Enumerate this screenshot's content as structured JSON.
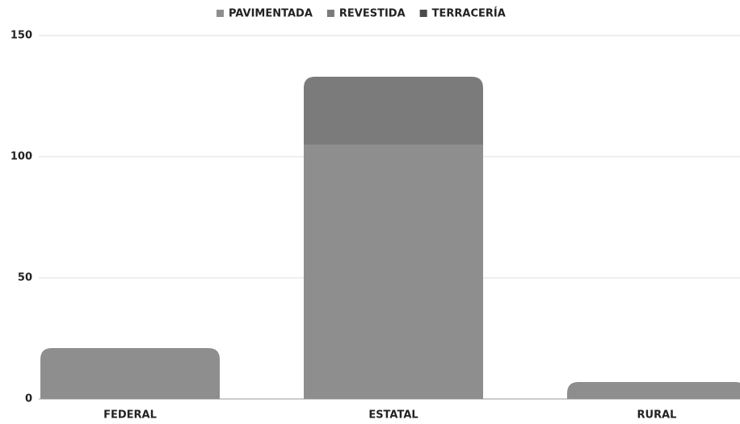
{
  "chart_data": {
    "type": "stacked_bar",
    "categories": [
      "FEDERAL",
      "ESTATAL",
      "RURAL"
    ],
    "series": [
      {
        "name": "PAVIMENTADA",
        "color": "#8e8e8e",
        "values": [
          21,
          105,
          7
        ]
      },
      {
        "name": "REVESTIDA",
        "color": "#7b7b7b",
        "values": [
          0,
          28,
          0
        ]
      },
      {
        "name": "TERRACERÍA",
        "color": "#4a4a4a",
        "values": [
          0,
          0,
          0
        ]
      }
    ],
    "ylim": [
      0,
      150
    ],
    "yticks": [
      0,
      50,
      100,
      150
    ],
    "grid": true,
    "legend": "top"
  }
}
